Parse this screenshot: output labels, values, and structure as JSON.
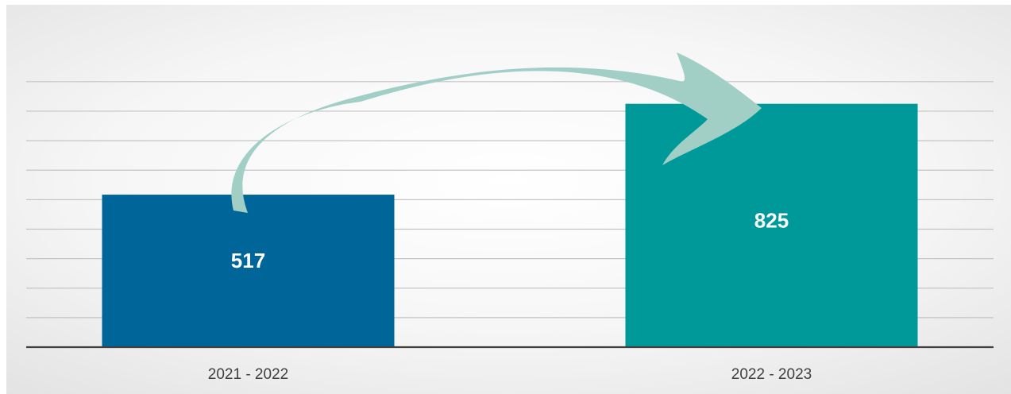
{
  "chart_data": {
    "type": "bar",
    "categories": [
      "2021 - 2022",
      "2022 - 2023"
    ],
    "values": [
      517,
      825
    ],
    "data_labels": [
      "517",
      "825"
    ],
    "ylim": [
      0,
      1000
    ],
    "grid": true,
    "legend": "none",
    "colors": {
      "bar_1": "#006699",
      "bar_2": "#009999",
      "arrow": "#a1cfc6",
      "axis": "#404040",
      "grid": "#c4c4c4",
      "label": "#404040",
      "data_label": "#ffffff"
    },
    "annotation": "curved-arrow-from-bar-1-to-bar-2"
  }
}
